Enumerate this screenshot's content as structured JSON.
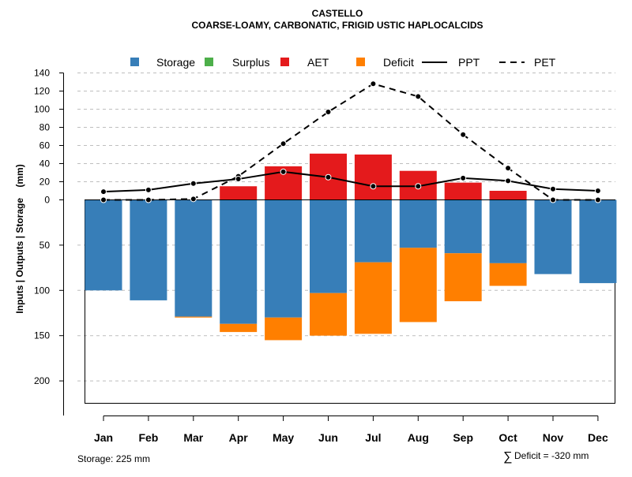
{
  "chart_data": {
    "type": "bar",
    "title": "CASTELLO",
    "subtitle": "COARSE-LOAMY, CARBONATIC, FRIGID USTIC HAPLOCALCIDS",
    "ylabel": "Inputs | Outputs | Storage    (mm)",
    "ylim": [
      -225,
      140
    ],
    "yticks_pos": [
      0,
      20,
      40,
      60,
      80,
      100,
      120,
      140
    ],
    "yticks_neg": [
      50,
      100,
      150,
      200
    ],
    "ytick_labels": {
      "pos": [
        "0",
        "20",
        "40",
        "60",
        "80",
        "100",
        "120",
        "140"
      ],
      "neg": [
        "50",
        "100",
        "150",
        "200"
      ]
    },
    "categories": [
      "Jan",
      "Feb",
      "Mar",
      "Apr",
      "May",
      "Jun",
      "Jul",
      "Aug",
      "Sep",
      "Oct",
      "Nov",
      "Dec"
    ],
    "legend": [
      {
        "name": "Storage",
        "kind": "box",
        "color": "#377EB8"
      },
      {
        "name": "Surplus",
        "kind": "box",
        "color": "#4DAF4A"
      },
      {
        "name": "AET",
        "kind": "box",
        "color": "#E41A1C"
      },
      {
        "name": "Deficit",
        "kind": "box",
        "color": "#FF7F00"
      },
      {
        "name": "PPT",
        "kind": "solid",
        "color": "#000000"
      },
      {
        "name": "PET",
        "kind": "dashed",
        "color": "#000000"
      }
    ],
    "series": [
      {
        "name": "Storage",
        "values": [
          100,
          111,
          129,
          137,
          130,
          103,
          69,
          53,
          59,
          70,
          82,
          92
        ]
      },
      {
        "name": "Deficit",
        "values": [
          0,
          0,
          1,
          9,
          25,
          47,
          79,
          82,
          53,
          25,
          0,
          0
        ]
      },
      {
        "name": "AET",
        "values": [
          0,
          0,
          0,
          15,
          37,
          51,
          50,
          32,
          19,
          10,
          0,
          0
        ]
      },
      {
        "name": "Surplus",
        "values": [
          0,
          0,
          0,
          0,
          0,
          0,
          0,
          0,
          0,
          0,
          0,
          0
        ]
      },
      {
        "name": "PPT",
        "values": [
          9,
          11,
          18,
          23,
          31,
          25,
          15,
          15,
          24,
          21,
          12,
          10
        ]
      },
      {
        "name": "PET",
        "values": [
          0,
          0,
          1,
          26,
          62,
          97,
          128,
          114,
          72,
          35,
          0,
          0
        ]
      }
    ],
    "colors": {
      "storage": "#377EB8",
      "surplus": "#4DAF4A",
      "aet": "#E41A1C",
      "deficit": "#FF7F00",
      "line": "#000000",
      "grid": "#BEBEBE"
    },
    "footnotes": {
      "storage": "Storage: 225 mm",
      "deficit_symbol": "∑",
      "deficit": "Deficit = -320 mm"
    }
  }
}
